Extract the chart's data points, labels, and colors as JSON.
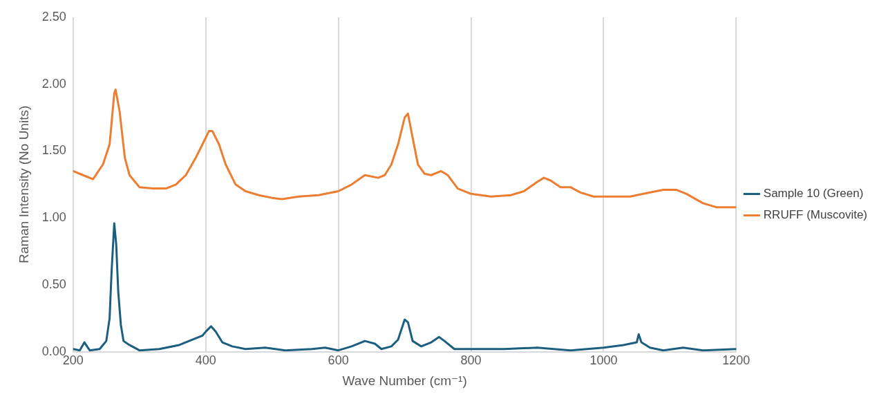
{
  "chart_data": {
    "type": "line",
    "xlabel": "Wave Number (cm⁻¹)",
    "ylabel": "Raman Intensity (No Units)",
    "xlim": [
      200,
      1200
    ],
    "xticks": [
      200,
      400,
      600,
      800,
      1000,
      1200
    ],
    "ylim": [
      0,
      2.5
    ],
    "yticks": [
      {
        "value": 0,
        "label": "0.00"
      },
      {
        "value": 0.5,
        "label": "0.50"
      },
      {
        "value": 1,
        "label": "1.00"
      },
      {
        "value": 1.5,
        "label": "1.50"
      },
      {
        "value": 2,
        "label": "2.00"
      },
      {
        "value": 2.5,
        "label": "2.50"
      }
    ],
    "grid": "x",
    "legend": "right",
    "marker": "none",
    "line_style": "solid",
    "series": [
      {
        "name": "Sample 10 (Green)",
        "color": "#1b5e80",
        "x": [
          200,
          210,
          217,
          225,
          240,
          250,
          255,
          258,
          262,
          265,
          268,
          272,
          276,
          285,
          300,
          330,
          360,
          380,
          395,
          400,
          408,
          415,
          425,
          440,
          460,
          490,
          520,
          560,
          580,
          600,
          620,
          640,
          655,
          665,
          680,
          690,
          700,
          705,
          712,
          725,
          740,
          752,
          760,
          775,
          800,
          850,
          900,
          950,
          1000,
          1030,
          1050,
          1053,
          1057,
          1070,
          1090,
          1120,
          1150,
          1200
        ],
        "values": [
          0.02,
          0.01,
          0.07,
          0.01,
          0.02,
          0.08,
          0.25,
          0.6,
          0.96,
          0.8,
          0.45,
          0.2,
          0.08,
          0.05,
          0.01,
          0.02,
          0.05,
          0.09,
          0.12,
          0.15,
          0.19,
          0.15,
          0.07,
          0.04,
          0.02,
          0.03,
          0.01,
          0.02,
          0.03,
          0.01,
          0.04,
          0.08,
          0.06,
          0.02,
          0.04,
          0.09,
          0.24,
          0.22,
          0.08,
          0.04,
          0.07,
          0.11,
          0.08,
          0.02,
          0.02,
          0.02,
          0.03,
          0.01,
          0.03,
          0.05,
          0.07,
          0.13,
          0.07,
          0.03,
          0.01,
          0.03,
          0.01,
          0.02
        ]
      },
      {
        "name": "RRUFF (Muscovite)",
        "color": "#ed7d31",
        "x": [
          200,
          215,
          230,
          245,
          255,
          262,
          264,
          270,
          278,
          285,
          300,
          320,
          340,
          355,
          370,
          385,
          395,
          405,
          410,
          420,
          430,
          445,
          460,
          480,
          500,
          515,
          540,
          570,
          600,
          620,
          640,
          660,
          670,
          680,
          690,
          700,
          705,
          712,
          720,
          730,
          740,
          755,
          765,
          780,
          800,
          830,
          860,
          880,
          900,
          910,
          920,
          935,
          950,
          965,
          985,
          1000,
          1040,
          1060,
          1090,
          1110,
          1125,
          1150,
          1170,
          1200
        ],
        "values": [
          1.35,
          1.32,
          1.29,
          1.4,
          1.55,
          1.93,
          1.96,
          1.8,
          1.45,
          1.32,
          1.23,
          1.22,
          1.22,
          1.25,
          1.32,
          1.45,
          1.55,
          1.65,
          1.65,
          1.55,
          1.4,
          1.25,
          1.2,
          1.17,
          1.15,
          1.14,
          1.16,
          1.17,
          1.2,
          1.25,
          1.32,
          1.3,
          1.32,
          1.4,
          1.55,
          1.75,
          1.78,
          1.6,
          1.4,
          1.33,
          1.32,
          1.35,
          1.32,
          1.22,
          1.18,
          1.16,
          1.17,
          1.2,
          1.27,
          1.3,
          1.28,
          1.23,
          1.23,
          1.19,
          1.16,
          1.16,
          1.16,
          1.18,
          1.21,
          1.21,
          1.18,
          1.11,
          1.08,
          1.08
        ]
      }
    ]
  }
}
